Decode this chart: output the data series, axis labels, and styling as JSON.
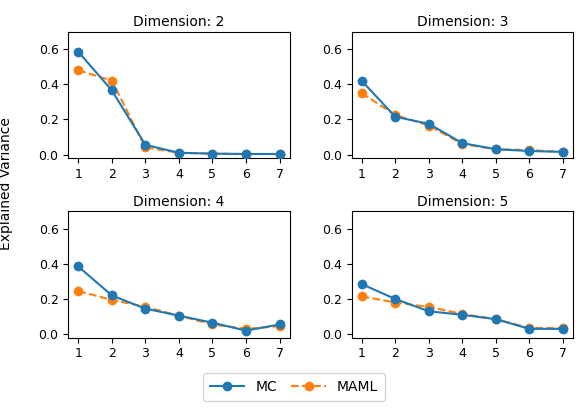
{
  "titles": [
    "Dimension: 2",
    "Dimension: 3",
    "Dimension: 4",
    "Dimension: 5"
  ],
  "x": [
    1,
    2,
    3,
    4,
    5,
    6,
    7
  ],
  "mc_data": [
    [
      0.585,
      0.365,
      0.055,
      0.01,
      0.005,
      0.003,
      0.003
    ],
    [
      0.42,
      0.215,
      0.175,
      0.065,
      0.03,
      0.02,
      0.015
    ],
    [
      0.385,
      0.22,
      0.145,
      0.105,
      0.065,
      0.02,
      0.055
    ],
    [
      0.285,
      0.2,
      0.13,
      0.11,
      0.085,
      0.03,
      0.03
    ]
  ],
  "maml_data": [
    [
      0.48,
      0.42,
      0.04,
      0.01,
      0.005,
      0.003,
      0.003
    ],
    [
      0.35,
      0.225,
      0.165,
      0.06,
      0.03,
      0.025,
      0.015
    ],
    [
      0.245,
      0.195,
      0.155,
      0.105,
      0.055,
      0.03,
      0.045
    ],
    [
      0.215,
      0.18,
      0.155,
      0.115,
      0.085,
      0.035,
      0.035
    ]
  ],
  "mc_color": "#1f77b4",
  "maml_color": "#ff7f0e",
  "ylabel": "Explained Variance",
  "ylim": [
    -0.02,
    0.7
  ],
  "yticks": [
    0.0,
    0.2,
    0.4,
    0.6
  ],
  "xlim": [
    0.7,
    7.3
  ],
  "xticks": [
    1,
    2,
    3,
    4,
    5,
    6,
    7
  ],
  "mc_label": "MC",
  "maml_label": "MAML",
  "mc_linewidth": 1.5,
  "maml_linewidth": 1.5,
  "marker_size": 6,
  "background_color": "#ffffff",
  "title_fontsize": 10,
  "tick_fontsize": 9,
  "legend_fontsize": 10
}
